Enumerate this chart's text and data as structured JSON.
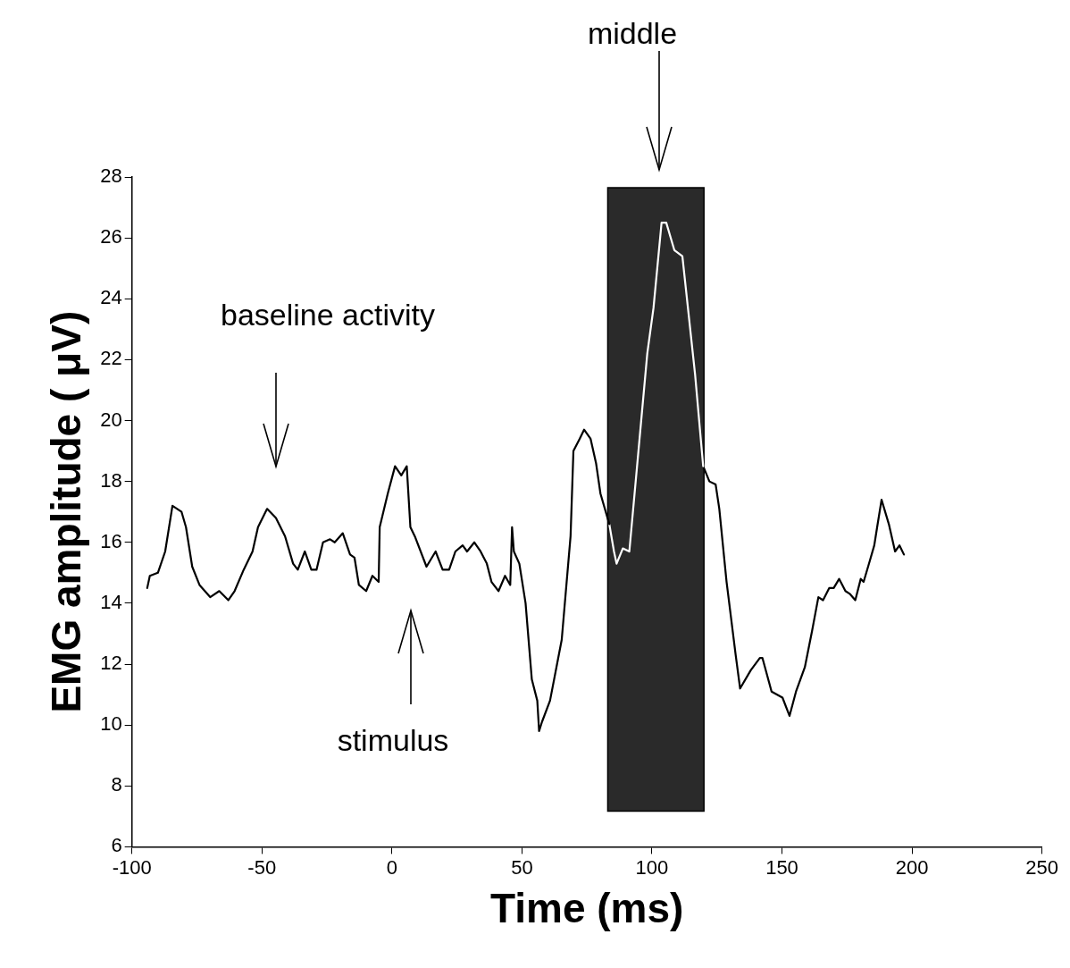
{
  "chart_data": {
    "type": "line",
    "xlabel": "Time (ms)",
    "ylabel": "EMG amplitude ( μV)",
    "xlim": [
      -100,
      250
    ],
    "xticks": [
      -100,
      -50,
      0,
      50,
      100,
      150,
      200,
      250
    ],
    "ylim": [
      6,
      28
    ],
    "yticks": [
      6,
      8,
      10,
      12,
      14,
      16,
      18,
      20,
      22,
      24,
      26,
      28
    ],
    "grid": false,
    "legend": false,
    "marker": "none",
    "line_style": "solid",
    "series": [
      {
        "color": "#000000",
        "x": [
          -94.1,
          -93.1,
          -90,
          -87.2,
          -84.4,
          -80.9,
          -79.2,
          -76.8,
          -74,
          -69.9,
          -66.4,
          -62.9,
          -60.5,
          -57,
          -53.6,
          -51.5,
          -48,
          -44.6,
          -41.1,
          -38,
          -36.2,
          -33.5,
          -31,
          -29,
          -26.5,
          -23.8,
          -22,
          -18.9,
          -16.1,
          -14.4,
          -12.7,
          -9.9,
          -7.5,
          -5.1,
          -4.7,
          -1.6,
          1.2,
          3.6,
          5.7,
          7.1,
          8.8,
          13.3,
          16.8,
          19.5,
          22,
          24.4,
          27.2,
          28.9,
          31.7,
          34.1,
          36.5,
          38.3,
          41,
          43.5,
          45.5,
          46.2,
          46.9,
          49,
          51.4,
          53.8,
          55.9,
          56.6,
          57.7,
          60.8,
          65.3,
          68.7,
          69.8,
          72.2,
          73.9,
          76.4,
          78.5,
          80.2,
          83.6
        ],
        "values": [
          14.5,
          14.9,
          15,
          15.7,
          17.2,
          17,
          16.5,
          15.2,
          14.6,
          14.2,
          14.4,
          14.1,
          14.4,
          15.1,
          15.7,
          16.5,
          17.1,
          16.8,
          16.2,
          15.3,
          15.1,
          15.7,
          15.1,
          15.1,
          16,
          16.1,
          16,
          16.3,
          15.6,
          15.5,
          14.6,
          14.4,
          14.9,
          14.7,
          16.5,
          17.6,
          18.5,
          18.2,
          18.5,
          16.5,
          16.2,
          15.2,
          15.7,
          15.1,
          15.1,
          15.7,
          15.9,
          15.7,
          16,
          15.7,
          15.3,
          14.7,
          14.4,
          14.9,
          14.6,
          16.5,
          15.7,
          15.3,
          14,
          11.5,
          10.8,
          9.8,
          10.1,
          10.8,
          12.8,
          16.2,
          19,
          19.4,
          19.7,
          19.4,
          18.6,
          17.6,
          16.6
        ]
      },
      {
        "color": "#ffffff",
        "x": [
          83.6,
          85.4,
          86.4,
          88.8,
          91.3,
          98.2,
          100.6,
          103.7,
          105.5,
          108.6,
          111.7,
          116.6,
          119.7
        ],
        "values": [
          16.6,
          15.7,
          15.3,
          15.8,
          15.7,
          22.2,
          23.7,
          26.5,
          26.5,
          25.6,
          25.4,
          21.5,
          18.5
        ]
      },
      {
        "color": "#000000",
        "x": [
          119.7,
          122.1,
          124.5,
          125.9,
          128.7,
          132.2,
          133.9,
          138,
          141.5,
          142.5,
          146,
          150.2,
          152.9,
          155.4,
          158.8,
          161.6,
          164,
          165.8,
          168.2,
          169.9,
          172,
          174.4,
          176.2,
          178.2,
          180.3,
          181.4,
          183.8,
          185.5,
          186.6,
          188.3,
          191.1,
          193.5,
          195.2,
          196.9
        ],
        "values": [
          18.5,
          18,
          17.9,
          17.1,
          14.7,
          12.3,
          11.2,
          11.8,
          12.2,
          12.2,
          11.1,
          10.9,
          10.3,
          11.1,
          11.9,
          13.1,
          14.2,
          14.1,
          14.5,
          14.5,
          14.8,
          14.4,
          14.3,
          14.1,
          14.8,
          14.7,
          15.4,
          15.9,
          16.5,
          17.4,
          16.6,
          15.7,
          15.9,
          15.6
        ]
      }
    ],
    "bands": [
      {
        "axis": "x",
        "from": 83,
        "to": 120,
        "color": "#2a2a2a"
      }
    ],
    "annotations": [
      "baseline activity",
      "stimulus",
      "middle"
    ]
  }
}
